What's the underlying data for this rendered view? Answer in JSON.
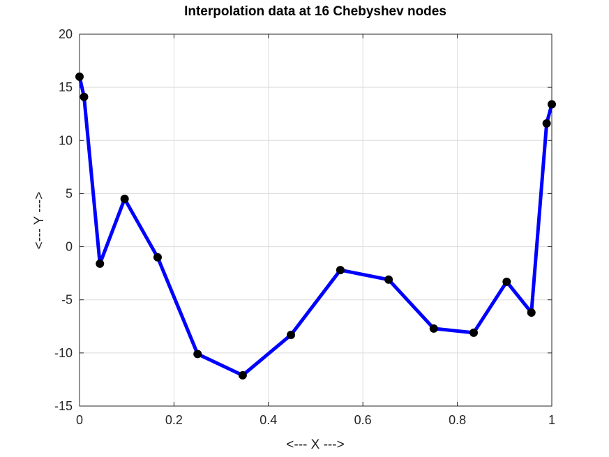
{
  "chart_data": {
    "type": "line",
    "title": "Interpolation data at 16 Chebyshev nodes",
    "xlabel": "<--- X --->",
    "ylabel": "<--- Y --->",
    "xlim": [
      0,
      1
    ],
    "ylim": [
      -15,
      20
    ],
    "xticks": [
      0,
      0.2,
      0.4,
      0.6,
      0.8,
      1
    ],
    "xtick_labels": [
      "0",
      "0.2",
      "0.4",
      "0.6",
      "0.8",
      "1"
    ],
    "yticks": [
      -15,
      -10,
      -5,
      0,
      5,
      10,
      15,
      20
    ],
    "ytick_labels": [
      "-15",
      "-10",
      "-5",
      "0",
      "5",
      "10",
      "15",
      "20"
    ],
    "grid": true,
    "line_color": "#0000ff",
    "marker_color": "#000000",
    "series": [
      {
        "x": [
          0.0,
          0.0096,
          0.0432,
          0.0955,
          0.1654,
          0.25,
          0.3455,
          0.4477,
          0.5523,
          0.6545,
          0.75,
          0.8346,
          0.9045,
          0.9568,
          0.9891,
          1.0
        ],
        "y": [
          16.0,
          14.1,
          -1.6,
          4.5,
          -1.0,
          -10.1,
          -12.1,
          -8.3,
          -2.2,
          -3.1,
          -7.7,
          -8.1,
          -3.3,
          -6.2,
          11.6,
          13.4
        ]
      }
    ]
  }
}
